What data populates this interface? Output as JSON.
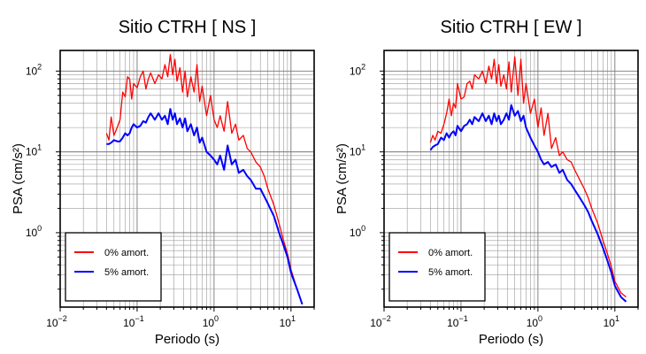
{
  "chart_data": [
    {
      "type": "line",
      "title": "Sitio CTRH [ NS ]",
      "xlabel": "Periodo (s)",
      "ylabel": "PSA (cm/s²)",
      "x_scale": "log",
      "y_scale": "log",
      "xlim": [
        0.01,
        20
      ],
      "ylim": [
        0.12,
        180
      ],
      "grid": true,
      "legend_position": "bottom-left",
      "x_ticks": [
        {
          "value": 0.01,
          "base": "10",
          "exp": "−2"
        },
        {
          "value": 0.1,
          "base": "10",
          "exp": "−1"
        },
        {
          "value": 1,
          "base": "10",
          "exp": "0"
        },
        {
          "value": 10,
          "base": "10",
          "exp": "1"
        }
      ],
      "y_ticks": [
        {
          "value": 1,
          "base": "10",
          "exp": "0"
        },
        {
          "value": 10,
          "base": "10",
          "exp": "1"
        },
        {
          "value": 100,
          "base": "10",
          "exp": "2"
        }
      ],
      "series": [
        {
          "name": "0% amort.",
          "color": "#ff0000",
          "x": [
            0.04,
            0.043,
            0.046,
            0.05,
            0.055,
            0.06,
            0.065,
            0.07,
            0.075,
            0.08,
            0.085,
            0.09,
            0.1,
            0.11,
            0.12,
            0.13,
            0.14,
            0.15,
            0.17,
            0.19,
            0.21,
            0.23,
            0.25,
            0.27,
            0.29,
            0.31,
            0.33,
            0.36,
            0.39,
            0.42,
            0.45,
            0.5,
            0.55,
            0.6,
            0.65,
            0.7,
            0.8,
            0.9,
            1.0,
            1.1,
            1.2,
            1.35,
            1.5,
            1.7,
            1.9,
            2.1,
            2.4,
            2.7,
            3.0,
            3.5,
            4.0,
            4.5,
            5.0,
            6.0,
            7.0,
            8.0,
            9.0,
            10.0,
            12.0,
            14.0
          ],
          "y": [
            17,
            14,
            27,
            16,
            20,
            25,
            55,
            48,
            85,
            80,
            45,
            70,
            62,
            85,
            100,
            60,
            80,
            95,
            70,
            90,
            80,
            120,
            85,
            160,
            90,
            140,
            75,
            110,
            55,
            100,
            48,
            85,
            55,
            120,
            42,
            65,
            28,
            50,
            25,
            20,
            28,
            18,
            42,
            17,
            22,
            14,
            16,
            11,
            10,
            7.5,
            6.5,
            5.0,
            3.5,
            2.2,
            1.3,
            0.8,
            0.55,
            0.35,
            0.2,
            0.13
          ]
        },
        {
          "name": "5% amort.",
          "color": "#0000ff",
          "x": [
            0.04,
            0.043,
            0.046,
            0.05,
            0.055,
            0.06,
            0.065,
            0.07,
            0.075,
            0.08,
            0.085,
            0.09,
            0.1,
            0.11,
            0.12,
            0.13,
            0.14,
            0.15,
            0.17,
            0.19,
            0.21,
            0.23,
            0.25,
            0.27,
            0.29,
            0.31,
            0.33,
            0.36,
            0.39,
            0.42,
            0.45,
            0.5,
            0.55,
            0.6,
            0.65,
            0.7,
            0.8,
            0.9,
            1.0,
            1.1,
            1.2,
            1.35,
            1.5,
            1.7,
            1.9,
            2.1,
            2.4,
            2.7,
            3.0,
            3.5,
            4.0,
            4.5,
            5.0,
            6.0,
            7.0,
            8.0,
            9.0,
            10.0,
            12.0,
            14.0
          ],
          "y": [
            12.5,
            12.5,
            13,
            14,
            13.5,
            13.5,
            15,
            17,
            16,
            17,
            20,
            22,
            20,
            21,
            24,
            23,
            27,
            30,
            25,
            30,
            25,
            28,
            22,
            34,
            25,
            30,
            22,
            26,
            20,
            26,
            18,
            22,
            16,
            20,
            13,
            15,
            10,
            9,
            8,
            7,
            9,
            6,
            12,
            7,
            8,
            5.5,
            6,
            5,
            4.5,
            3.5,
            3.5,
            2.8,
            2.3,
            1.6,
            1.0,
            0.7,
            0.5,
            0.32,
            0.2,
            0.13
          ]
        }
      ]
    },
    {
      "type": "line",
      "title": "Sitio CTRH [ EW ]",
      "xlabel": "Periodo (s)",
      "ylabel": "PSA (cm/s²)",
      "x_scale": "log",
      "y_scale": "log",
      "xlim": [
        0.01,
        20
      ],
      "ylim": [
        0.12,
        180
      ],
      "grid": true,
      "legend_position": "bottom-left",
      "x_ticks": [
        {
          "value": 0.01,
          "base": "10",
          "exp": "−2"
        },
        {
          "value": 0.1,
          "base": "10",
          "exp": "−1"
        },
        {
          "value": 1,
          "base": "10",
          "exp": "0"
        },
        {
          "value": 10,
          "base": "10",
          "exp": "1"
        }
      ],
      "y_ticks": [
        {
          "value": 1,
          "base": "10",
          "exp": "0"
        },
        {
          "value": 10,
          "base": "10",
          "exp": "1"
        },
        {
          "value": 100,
          "base": "10",
          "exp": "2"
        }
      ],
      "series": [
        {
          "name": "0% amort.",
          "color": "#ff0000",
          "x": [
            0.04,
            0.043,
            0.046,
            0.05,
            0.055,
            0.06,
            0.065,
            0.07,
            0.075,
            0.08,
            0.085,
            0.09,
            0.1,
            0.11,
            0.12,
            0.13,
            0.14,
            0.15,
            0.17,
            0.19,
            0.21,
            0.23,
            0.25,
            0.27,
            0.29,
            0.31,
            0.33,
            0.36,
            0.39,
            0.42,
            0.45,
            0.5,
            0.55,
            0.6,
            0.65,
            0.7,
            0.8,
            0.9,
            1.0,
            1.1,
            1.2,
            1.35,
            1.5,
            1.7,
            1.9,
            2.1,
            2.4,
            2.7,
            3.0,
            3.5,
            4.0,
            4.5,
            5.0,
            6.0,
            7.0,
            8.0,
            9.0,
            10.0,
            12.0,
            14.0
          ],
          "y": [
            13,
            16,
            14,
            18,
            17,
            22,
            30,
            45,
            28,
            40,
            35,
            70,
            45,
            48,
            70,
            75,
            60,
            90,
            80,
            100,
            70,
            115,
            80,
            140,
            70,
            120,
            65,
            90,
            60,
            130,
            55,
            150,
            50,
            140,
            40,
            70,
            30,
            45,
            20,
            35,
            16,
            30,
            11,
            15,
            9,
            10,
            8,
            7.5,
            6,
            4.5,
            3.5,
            2.7,
            2.0,
            1.3,
            0.8,
            0.55,
            0.38,
            0.25,
            0.18,
            0.16
          ]
        },
        {
          "name": "5% amort.",
          "color": "#0000ff",
          "x": [
            0.04,
            0.043,
            0.046,
            0.05,
            0.055,
            0.06,
            0.065,
            0.07,
            0.075,
            0.08,
            0.085,
            0.09,
            0.1,
            0.11,
            0.12,
            0.13,
            0.14,
            0.15,
            0.17,
            0.19,
            0.21,
            0.23,
            0.25,
            0.27,
            0.29,
            0.31,
            0.33,
            0.36,
            0.39,
            0.42,
            0.45,
            0.5,
            0.55,
            0.6,
            0.65,
            0.7,
            0.8,
            0.9,
            1.0,
            1.1,
            1.2,
            1.35,
            1.5,
            1.7,
            1.9,
            2.1,
            2.4,
            2.7,
            3.0,
            3.5,
            4.0,
            4.5,
            5.0,
            6.0,
            7.0,
            8.0,
            9.0,
            10.0,
            12.0,
            14.0
          ],
          "y": [
            10.5,
            11.5,
            12,
            12.5,
            15,
            14,
            17,
            15,
            17,
            18,
            16,
            21,
            18,
            21,
            22,
            25,
            22,
            27,
            24,
            30,
            24,
            28,
            22,
            30,
            24,
            28,
            22,
            25,
            30,
            25,
            38,
            28,
            32,
            24,
            28,
            20,
            15,
            12,
            10,
            8,
            7,
            7.5,
            6.5,
            7,
            5.5,
            6,
            4.5,
            4,
            3.4,
            2.7,
            2.2,
            1.8,
            1.4,
            0.95,
            0.65,
            0.45,
            0.32,
            0.22,
            0.16,
            0.14
          ]
        }
      ]
    }
  ]
}
